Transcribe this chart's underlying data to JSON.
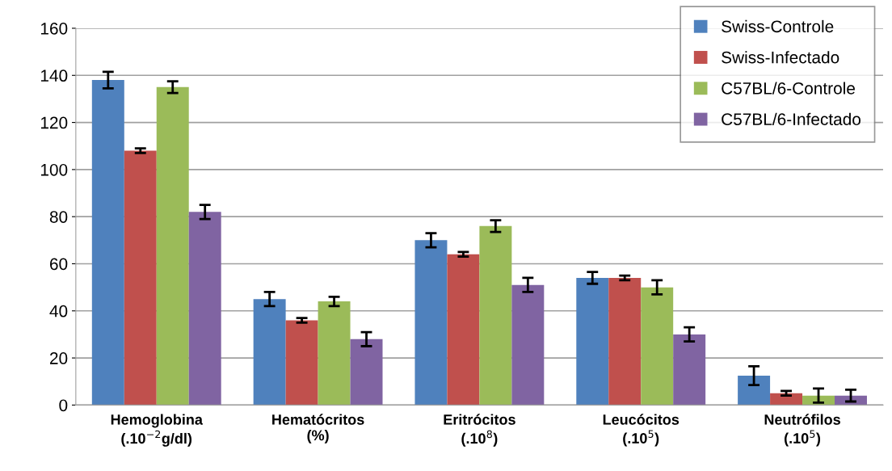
{
  "chart_data": {
    "type": "bar",
    "categories": [
      "Hemoglobina\n(.10$^{−2}$g/dl)",
      "Hematócritos\n(%)",
      "Eritrócitos\n(.10$^{8}$)",
      "Leucócitos\n(.10$^{5}$)",
      "Neutrófilos\n(.10$^{5}$)"
    ],
    "series": [
      {
        "name": "Swiss-Controle",
        "color": "#4f81bd",
        "values": [
          138,
          45,
          70,
          54,
          12.5
        ],
        "errors": [
          3.5,
          3,
          3,
          2.5,
          4
        ]
      },
      {
        "name": "Swiss-Infectado",
        "color": "#c0504d",
        "values": [
          108,
          36,
          64,
          54,
          5
        ],
        "errors": [
          1,
          1,
          1,
          1,
          1
        ]
      },
      {
        "name": "C57BL/6-Controle",
        "color": "#9bbb59",
        "values": [
          135,
          44,
          76,
          50,
          4
        ],
        "errors": [
          2.5,
          2,
          2.5,
          3,
          3
        ]
      },
      {
        "name": "C57BL/6-Infectado",
        "color": "#8064a2",
        "values": [
          82,
          28,
          51,
          30,
          4
        ],
        "errors": [
          3,
          3,
          3,
          3,
          2.5
        ]
      }
    ],
    "ylim": [
      0,
      160
    ],
    "yticks": [
      0,
      20,
      40,
      60,
      80,
      100,
      120,
      140,
      160
    ],
    "grid": "y",
    "legend": "top right"
  }
}
